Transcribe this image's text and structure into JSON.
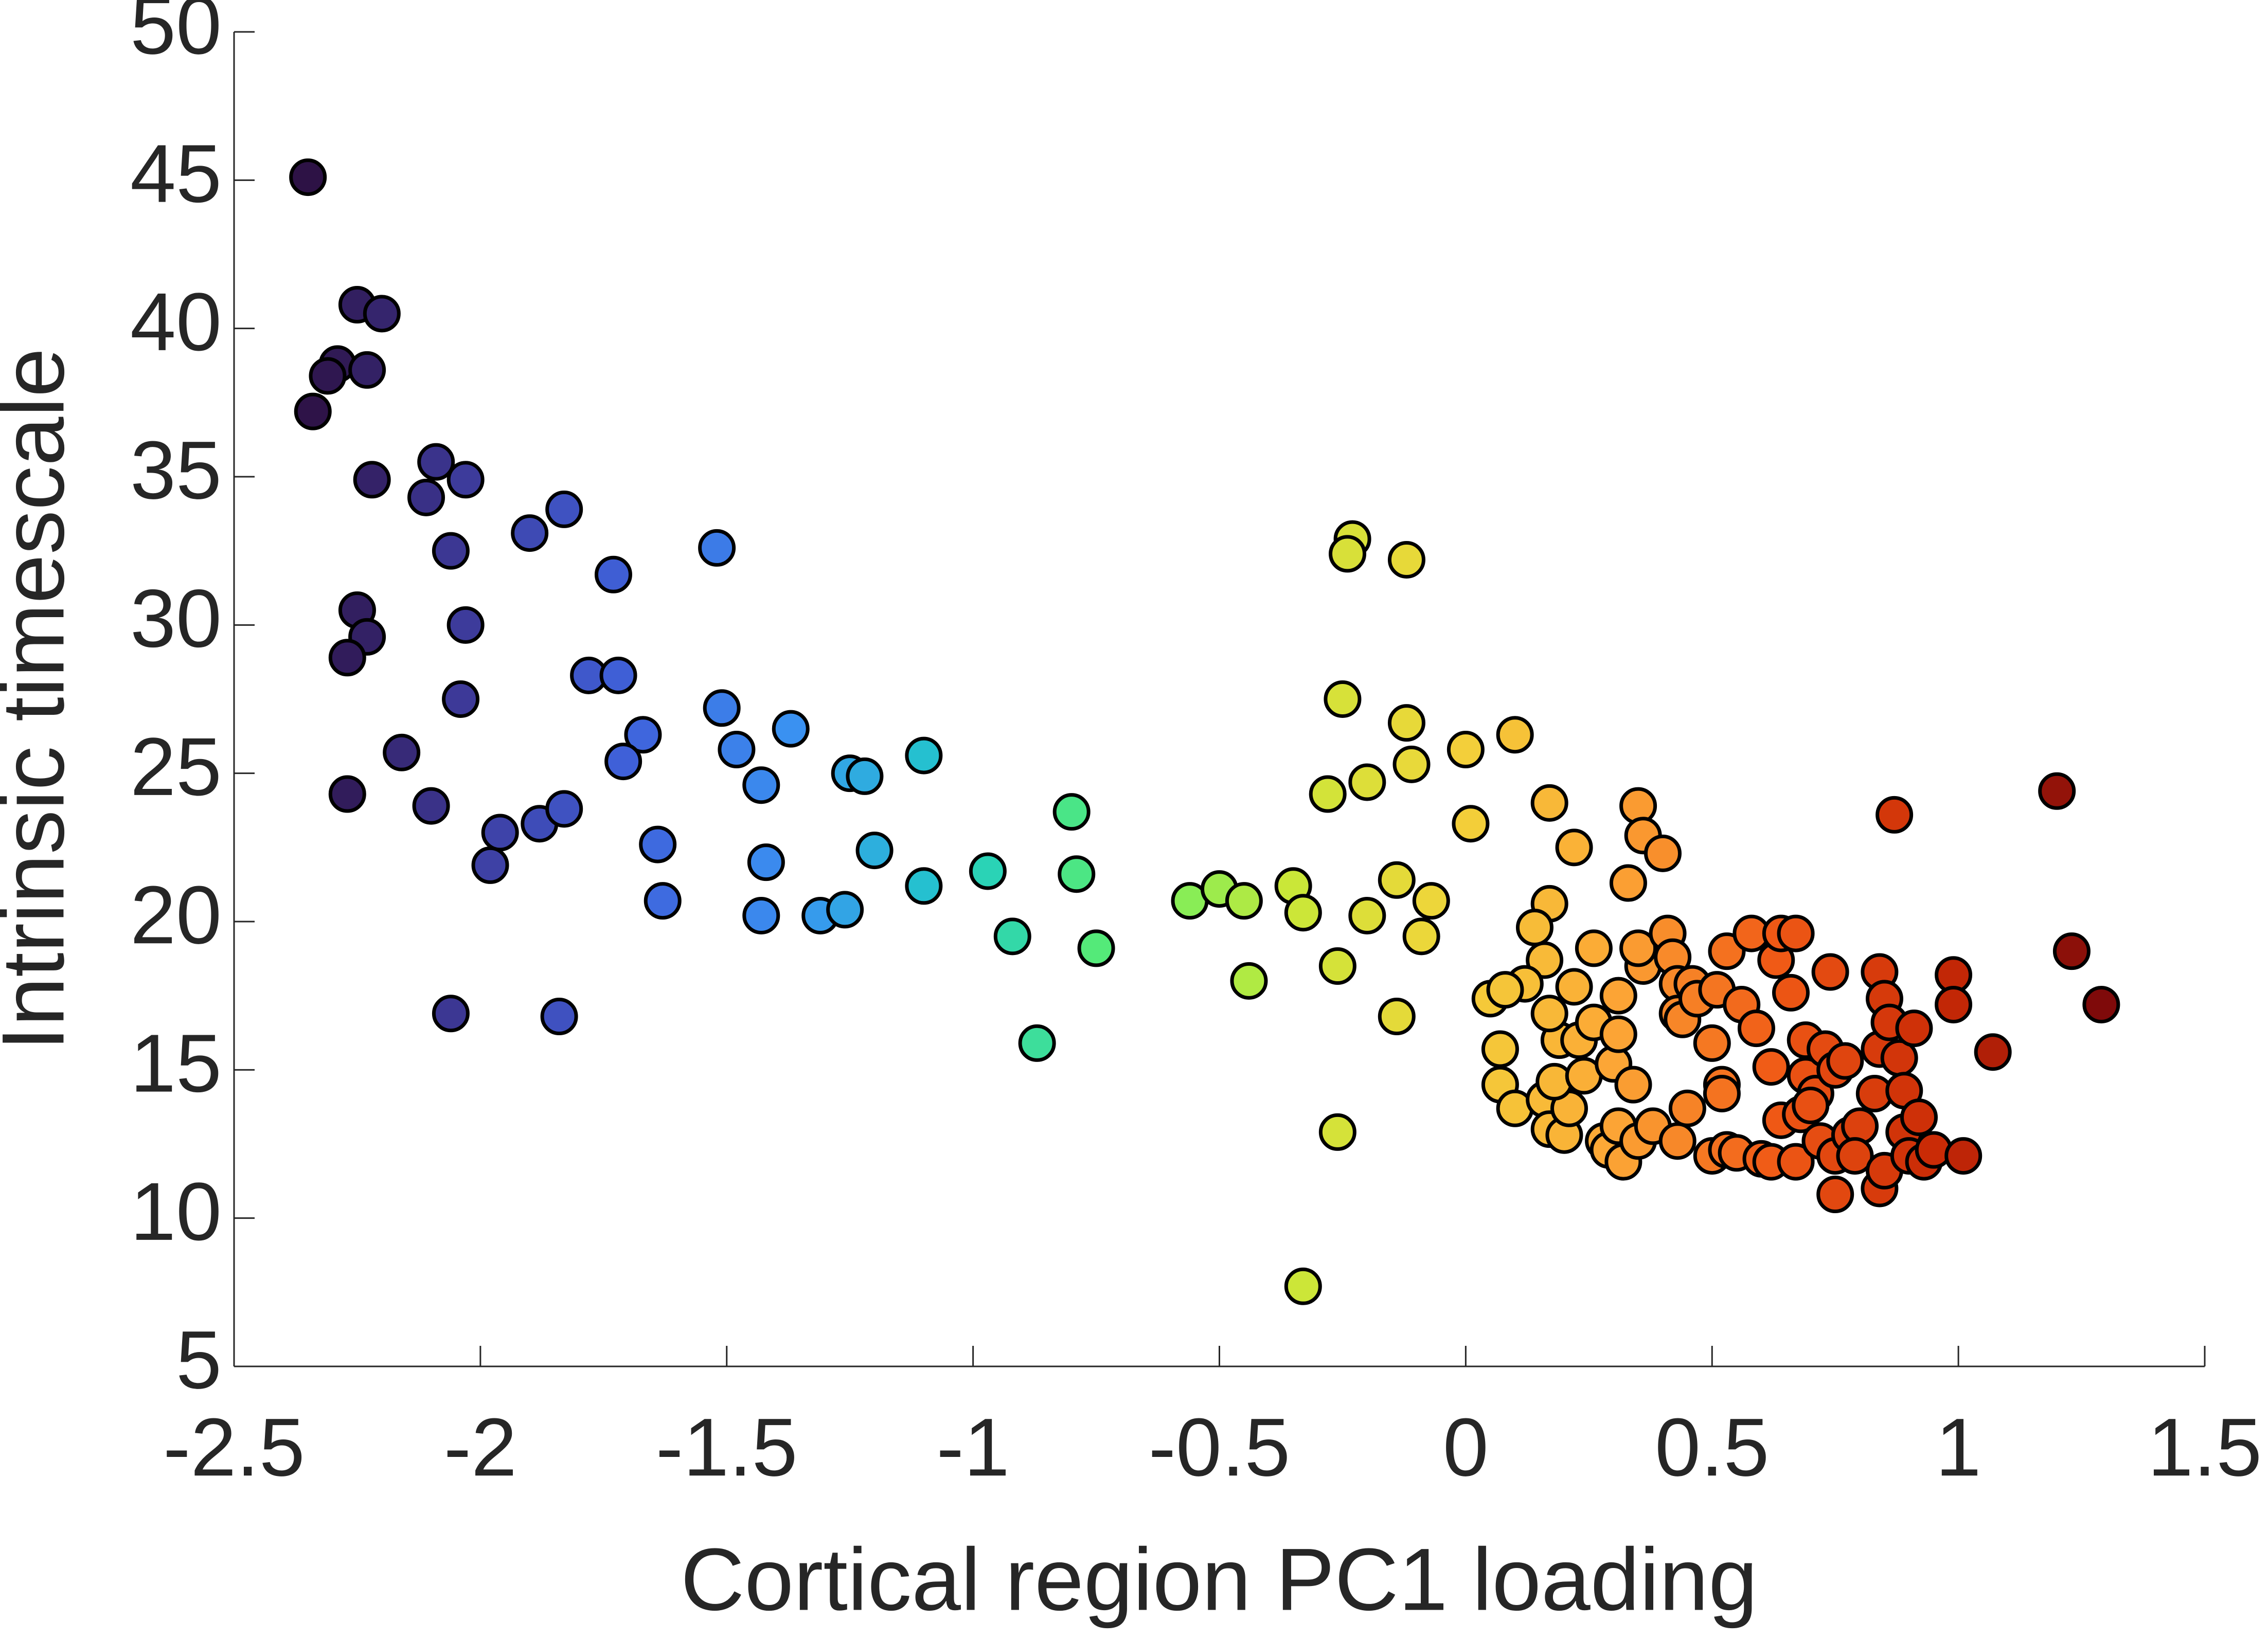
{
  "chart_data": {
    "type": "scatter",
    "xlabel": "Cortical region PC1 loading",
    "ylabel": "Intrinsic timescale",
    "xlim": [
      -2.5,
      1.5
    ],
    "xticks": [
      -2.5,
      -2,
      -1.5,
      -1,
      -0.5,
      0,
      0.5,
      1,
      1.5
    ],
    "ylim": [
      5,
      50
    ],
    "yticks": [
      5,
      10,
      15,
      20,
      25,
      30,
      35,
      40,
      45,
      50
    ],
    "colormap": [
      "#2d1245",
      "#3e3c9e",
      "#3f63dc",
      "#3a93f2",
      "#1fcdc6",
      "#5ef06a",
      "#c8e838",
      "#f2d43a",
      "#fca736",
      "#f05a16",
      "#c92a06",
      "#7f0a0a"
    ],
    "edge_color": "#000000",
    "x": [
      -2.35,
      -2.25,
      -2.2,
      -2.29,
      -2.31,
      -2.23,
      -2.34,
      -2.22,
      -2.09,
      -2.11,
      -2.03,
      -2.06,
      -2.25,
      -2.23,
      -2.27,
      -2.03,
      -2.04,
      -2.16,
      -2.27,
      -2.1,
      -1.96,
      -1.98,
      -1.88,
      -1.83,
      -2.06,
      -1.84,
      -1.9,
      -1.83,
      -1.73,
      -1.78,
      -1.72,
      -1.67,
      -1.71,
      -1.64,
      -1.63,
      -1.52,
      -1.51,
      -1.48,
      -1.43,
      -1.37,
      -1.42,
      -1.43,
      -1.31,
      -1.26,
      -1.25,
      -1.22,
      -1.2,
      -1.1,
      -1.1,
      -0.97,
      -0.92,
      -0.87,
      -0.8,
      -0.79,
      -0.75,
      -0.56,
      -0.5,
      -0.45,
      -0.44,
      -0.35,
      -0.33,
      -0.33,
      -0.26,
      -0.26,
      -0.28,
      -0.25,
      -0.23,
      -0.24,
      -0.12,
      -0.12,
      -0.11,
      -0.2,
      -0.2,
      -0.14,
      -0.07,
      -0.09,
      -0.14,
      0.0,
      0.01,
      0.1,
      0.17,
      0.22,
      0.17,
      0.14,
      0.16,
      0.12,
      0.05,
      0.08,
      0.07,
      0.07,
      0.1,
      0.16,
      0.17,
      0.2,
      0.21,
      0.18,
      0.19,
      0.17,
      0.22,
      0.24,
      0.23,
      0.26,
      0.26,
      0.28,
      0.29,
      0.31,
      0.31,
      0.3,
      0.31,
      0.32,
      0.33,
      0.34,
      0.35,
      0.36,
      0.4,
      0.35,
      0.36,
      0.35,
      0.38,
      0.41,
      0.42,
      0.43,
      0.43,
      0.43,
      0.44,
      0.45,
      0.46,
      0.47,
      0.51,
      0.5,
      0.52,
      0.52,
      0.5,
      0.53,
      0.58,
      0.56,
      0.53,
      0.55,
      0.59,
      0.62,
      0.6,
      0.62,
      0.63,
      0.64,
      0.67,
      0.66,
      0.64,
      0.68,
      0.69,
      0.69,
      0.67,
      0.71,
      0.7,
      0.72,
      0.74,
      0.73,
      0.75,
      0.75,
      0.75,
      0.77,
      0.78,
      0.8,
      0.79,
      0.83,
      0.84,
      0.84,
      0.85,
      0.84,
      0.85,
      0.86,
      0.87,
      0.88,
      0.89,
      0.89,
      0.9,
      0.92,
      0.91,
      0.93,
      0.95,
      0.99,
      0.99,
      1.01,
      1.07,
      1.2,
      1.23,
      1.29
    ],
    "values": [
      45.1,
      40.8,
      40.5,
      38.8,
      38.4,
      38.6,
      37.2,
      34.9,
      35.5,
      34.3,
      34.9,
      32.5,
      30.5,
      29.6,
      28.9,
      30.0,
      27.5,
      25.7,
      24.3,
      23.9,
      23.0,
      21.9,
      23.3,
      23.8,
      16.9,
      16.8,
      33.1,
      33.9,
      31.7,
      28.3,
      28.3,
      26.3,
      25.4,
      22.6,
      20.7,
      32.6,
      27.2,
      25.8,
      24.6,
      26.5,
      22.0,
      20.2,
      20.2,
      20.4,
      25.0,
      24.9,
      22.4,
      25.6,
      21.2,
      21.7,
      19.5,
      15.9,
      23.7,
      21.6,
      19.1,
      20.7,
      21.1,
      20.7,
      18.0,
      21.2,
      20.3,
      7.7,
      12.9,
      18.5,
      24.3,
      27.5,
      32.9,
      32.4,
      32.2,
      26.7,
      25.3,
      24.7,
      20.2,
      21.4,
      20.7,
      19.5,
      16.8,
      25.8,
      23.3,
      26.3,
      24.0,
      22.5,
      20.6,
      19.8,
      18.7,
      17.9,
      17.4,
      17.7,
      15.7,
      14.5,
      13.7,
      14.0,
      13.0,
      12.8,
      13.7,
      14.6,
      16.0,
      16.9,
      17.8,
      14.8,
      16.0,
      19.1,
      16.6,
      12.6,
      12.3,
      13.1,
      17.5,
      15.2,
      16.2,
      11.9,
      21.3,
      14.5,
      23.9,
      22.9,
      22.3,
      12.6,
      18.5,
      19.1,
      13.1,
      19.6,
      18.8,
      17.9,
      16.9,
      12.6,
      16.7,
      13.7,
      17.9,
      17.4,
      17.7,
      15.9,
      14.5,
      14.2,
      12.1,
      19.0,
      19.6,
      17.2,
      12.3,
      12.2,
      16.4,
      15.1,
      12.0,
      11.9,
      18.7,
      19.6,
      19.6,
      17.6,
      13.3,
      13.5,
      16.0,
      14.8,
      11.9,
      14.2,
      13.8,
      12.6,
      18.3,
      15.7,
      15.0,
      12.1,
      10.8,
      15.3,
      12.8,
      13.1,
      12.1,
      14.2,
      15.7,
      18.3,
      17.4,
      11.0,
      11.6,
      16.6,
      23.6,
      15.4,
      14.3,
      12.9,
      12.1,
      13.4,
      16.4,
      11.9,
      12.3,
      18.2,
      17.2,
      12.1,
      15.6,
      24.4,
      19.0,
      17.2
    ]
  }
}
